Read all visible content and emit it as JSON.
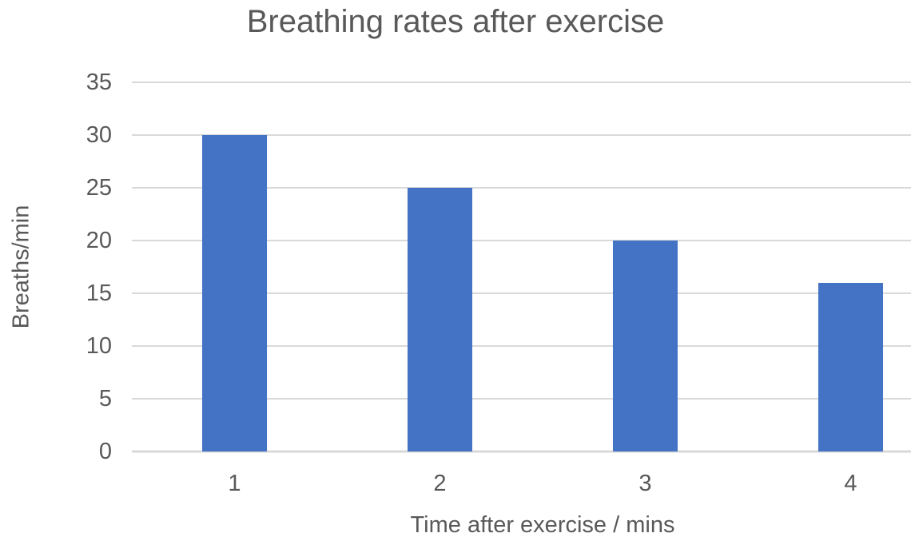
{
  "chart_data": {
    "type": "bar",
    "title": "Breathing rates after exercise",
    "xlabel": "Time after exercise / mins",
    "ylabel": "Breaths/min",
    "categories": [
      "1",
      "2",
      "3",
      "4"
    ],
    "values": [
      30,
      25,
      20,
      16
    ],
    "ylim": [
      0,
      35
    ],
    "yticks": [
      0,
      5,
      10,
      15,
      20,
      25,
      30,
      35
    ],
    "grid": true,
    "legend": "none",
    "colors": {
      "bar": "#4472C4",
      "grid": "#D9D9D9",
      "text": "#595959",
      "background": "#FFFFFF"
    }
  }
}
